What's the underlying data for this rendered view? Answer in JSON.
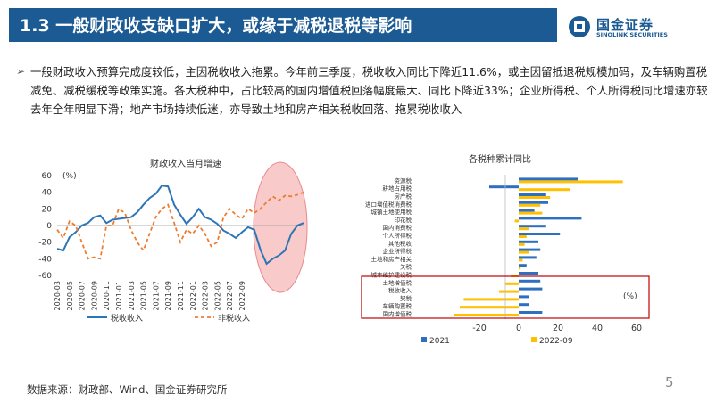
{
  "header": {
    "title": "1.3 一般财政收支缺口扩大，或缘于减税退税等影响"
  },
  "logo": {
    "cn": "国金证券",
    "en": "SINOLINK SECURITIES"
  },
  "body": {
    "bullet_marker": "➢",
    "text": "一般财政收入预算完成度较低，主因税收收入拖累。今年前三季度，税收收入同比下降近11.6%，或主因留抵退税规模加码，及车辆购置税减免、减税缓税等政策实施。各大税种中，占比较高的国内增值税回落幅度最大、同比下降近33%；企业所得税、个人所得税同比增速亦较去年全年明显下滑；地产市场持续低迷，亦导致土地和房产相关税收回落、拖累税收收入"
  },
  "footer": {
    "source": "数据来源：财政部、Wind、国金证券研究所",
    "page": "5"
  },
  "colors": {
    "blue": "#2e75b6",
    "orange": "#ed7d31",
    "bar_blue": "#2e6fc0",
    "bar_yellow": "#ffc000",
    "header": "#1b5a93",
    "highlight": "#e88a8a",
    "box": "#c00000"
  },
  "chart_data": [
    {
      "type": "line",
      "title": "财政收入当月增速",
      "ylabel": "(%)",
      "ylim": [
        -60,
        60
      ],
      "yticks": [
        -60,
        -40,
        -20,
        0,
        20,
        40,
        60
      ],
      "x_tick_labels": [
        "2020-03",
        "2020-05",
        "2020-07",
        "2020-09",
        "2020-11",
        "2021-01",
        "2021-03",
        "2021-05",
        "2021-07",
        "2021-09",
        "2021-11",
        "2022-01",
        "2022-03",
        "2022-05",
        "2022-07",
        "2022-09"
      ],
      "series": [
        {
          "name": "税收收入",
          "style": "solid",
          "values": [
            -28,
            -30,
            -14,
            -8,
            0,
            3,
            10,
            12,
            3,
            7,
            8,
            9,
            10,
            16,
            25,
            33,
            38,
            48,
            47,
            25,
            13,
            2,
            10,
            20,
            10,
            7,
            2,
            -6,
            -10,
            -15,
            -8,
            -2,
            -5,
            -29,
            -46,
            -40,
            -36,
            -30,
            -10,
            0,
            3
          ]
        },
        {
          "name": "非税收入",
          "style": "dashed",
          "values": [
            -5,
            -15,
            5,
            0,
            -20,
            -40,
            -38,
            -40,
            0,
            0,
            20,
            15,
            -5,
            -20,
            -30,
            -10,
            10,
            20,
            25,
            3,
            -20,
            -5,
            -10,
            0,
            -10,
            -25,
            -20,
            10,
            20,
            13,
            8,
            20,
            15,
            20,
            28,
            35,
            30,
            36,
            35,
            37,
            40
          ]
        }
      ]
    },
    {
      "type": "bar",
      "orientation": "horizontal",
      "title": "各税种累计同比",
      "unit": "(%)",
      "xlim": [
        -40,
        60
      ],
      "xticks": [
        -20,
        0,
        20,
        40,
        60
      ],
      "categories": [
        "资源税",
        "耕地占用税",
        "房产税",
        "进口增值税消费税",
        "城镇土地使用税",
        "印花税",
        "国内消费税",
        "个人所得税",
        "其他税收",
        "企业所得税",
        "土地和房产相关",
        "关税",
        "城市维护建设税",
        "土地增值税",
        "税收收入",
        "契税",
        "车辆购置税",
        "国内增值税"
      ],
      "series": [
        {
          "name": "2021",
          "values": [
            30,
            -15,
            14,
            15,
            8,
            32,
            14,
            21,
            10,
            11,
            9,
            4,
            10,
            11,
            12,
            5,
            5,
            12
          ]
        },
        {
          "name": "2022-09",
          "values": [
            53,
            26,
            16,
            11,
            12,
            -2,
            5,
            4,
            3,
            5,
            2,
            1,
            -4,
            -7,
            -10,
            -28,
            -30,
            -33
          ]
        }
      ],
      "highlighted": [
        "土地增值税",
        "税收收入",
        "契税",
        "车辆购置税",
        "国内增值税"
      ]
    }
  ]
}
